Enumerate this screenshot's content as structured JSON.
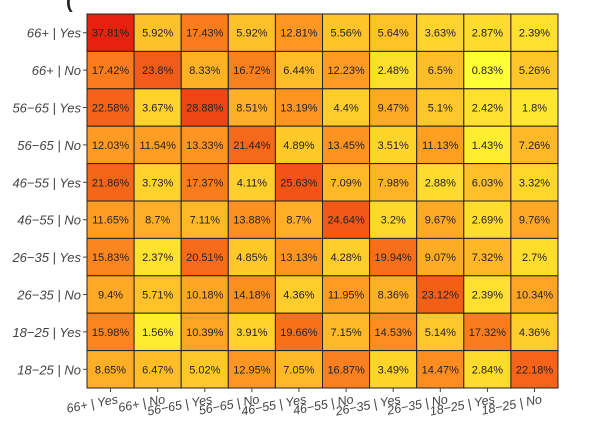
{
  "chart_data": {
    "type": "heatmap",
    "title": "",
    "title_fragment": "(",
    "xlabel": "",
    "ylabel": "",
    "x_categories": [
      "66+ | Yes",
      "66+ | No",
      "56−65 | Yes",
      "56−65 | No",
      "46−55 | Yes",
      "46−55 | No",
      "26−35 | Yes",
      "26−35 | No",
      "18−25 | Yes",
      "18−25 | No"
    ],
    "y_categories": [
      "66+ | Yes",
      "66+ | No",
      "56−65 | Yes",
      "56−65 | No",
      "46−55 | Yes",
      "46−55 | No",
      "26−35 | Yes",
      "26−35 | No",
      "18−25 | Yes",
      "18−25 | No"
    ],
    "value_labels": [
      [
        "37.81%",
        "5.92%",
        "17.43%",
        "5.92%",
        "12.81%",
        "5.56%",
        "5.64%",
        "3.63%",
        "2.87%",
        "2.39%"
      ],
      [
        "17.42%",
        "23.8%",
        "8.33%",
        "16.72%",
        "6.44%",
        "12.23%",
        "2.48%",
        "6.5%",
        "0.83%",
        "5.26%"
      ],
      [
        "22.58%",
        "3.67%",
        "28.88%",
        "8.51%",
        "13.19%",
        "4.4%",
        "9.47%",
        "5.1%",
        "2.42%",
        "1.8%"
      ],
      [
        "12.03%",
        "11.54%",
        "13.33%",
        "21.44%",
        "4.89%",
        "13.45%",
        "3.51%",
        "11.13%",
        "1.43%",
        "7.26%"
      ],
      [
        "21.86%",
        "3.73%",
        "17.37%",
        "4.11%",
        "25.63%",
        "7.09%",
        "7.98%",
        "2.88%",
        "6.03%",
        "3.32%"
      ],
      [
        "11.65%",
        "8.7%",
        "7.11%",
        "13.88%",
        "8.7%",
        "24.64%",
        "3.2%",
        "9.67%",
        "2.69%",
        "9.76%"
      ],
      [
        "15.83%",
        "2.37%",
        "20.51%",
        "4.85%",
        "13.13%",
        "4.28%",
        "19.94%",
        "9.07%",
        "7.32%",
        "2.7%"
      ],
      [
        "9.4%",
        "5.71%",
        "10.18%",
        "14.18%",
        "4.36%",
        "11.95%",
        "8.36%",
        "23.12%",
        "2.39%",
        "10.34%"
      ],
      [
        "15.98%",
        "1.56%",
        "10.39%",
        "3.91%",
        "19.66%",
        "7.15%",
        "14.53%",
        "5.14%",
        "17.32%",
        "4.36%"
      ],
      [
        "8.65%",
        "6.47%",
        "5.02%",
        "12.95%",
        "7.05%",
        "16.87%",
        "3.49%",
        "14.47%",
        "2.84%",
        "22.18%"
      ]
    ],
    "color_scale": {
      "low": "#ffff33",
      "mid": "#ff9922",
      "high": "#e8200e"
    },
    "legend": "none",
    "grid": false
  }
}
